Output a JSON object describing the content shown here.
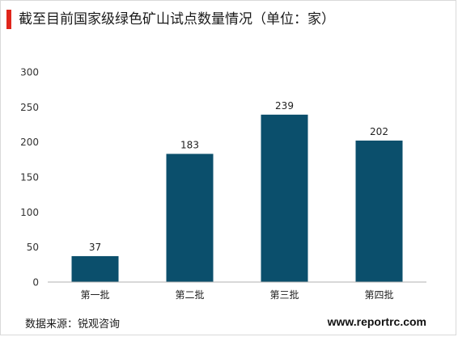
{
  "title": "截至目前国家级绿色矿山试点数量情况（单位：家）",
  "footer": {
    "source": "数据来源：锐观咨询",
    "brand": "www.reportrc.com"
  },
  "colors": {
    "accent": "#e0261c",
    "bar": "#0b4f6c",
    "axis": "#b0b0b0",
    "text": "#1a1a1a"
  },
  "chart_data": {
    "type": "bar",
    "title": "截至目前国家级绿色矿山试点数量情况（单位：家）",
    "categories": [
      "第一批",
      "第二批",
      "第三批",
      "第四批"
    ],
    "values": [
      37,
      183,
      239,
      202
    ],
    "data_labels": [
      "37",
      "183",
      "239",
      "202"
    ],
    "yticks": [
      0,
      50,
      100,
      150,
      200,
      250,
      300
    ],
    "ylim": [
      0,
      300
    ],
    "grid": false,
    "legend": "none"
  }
}
